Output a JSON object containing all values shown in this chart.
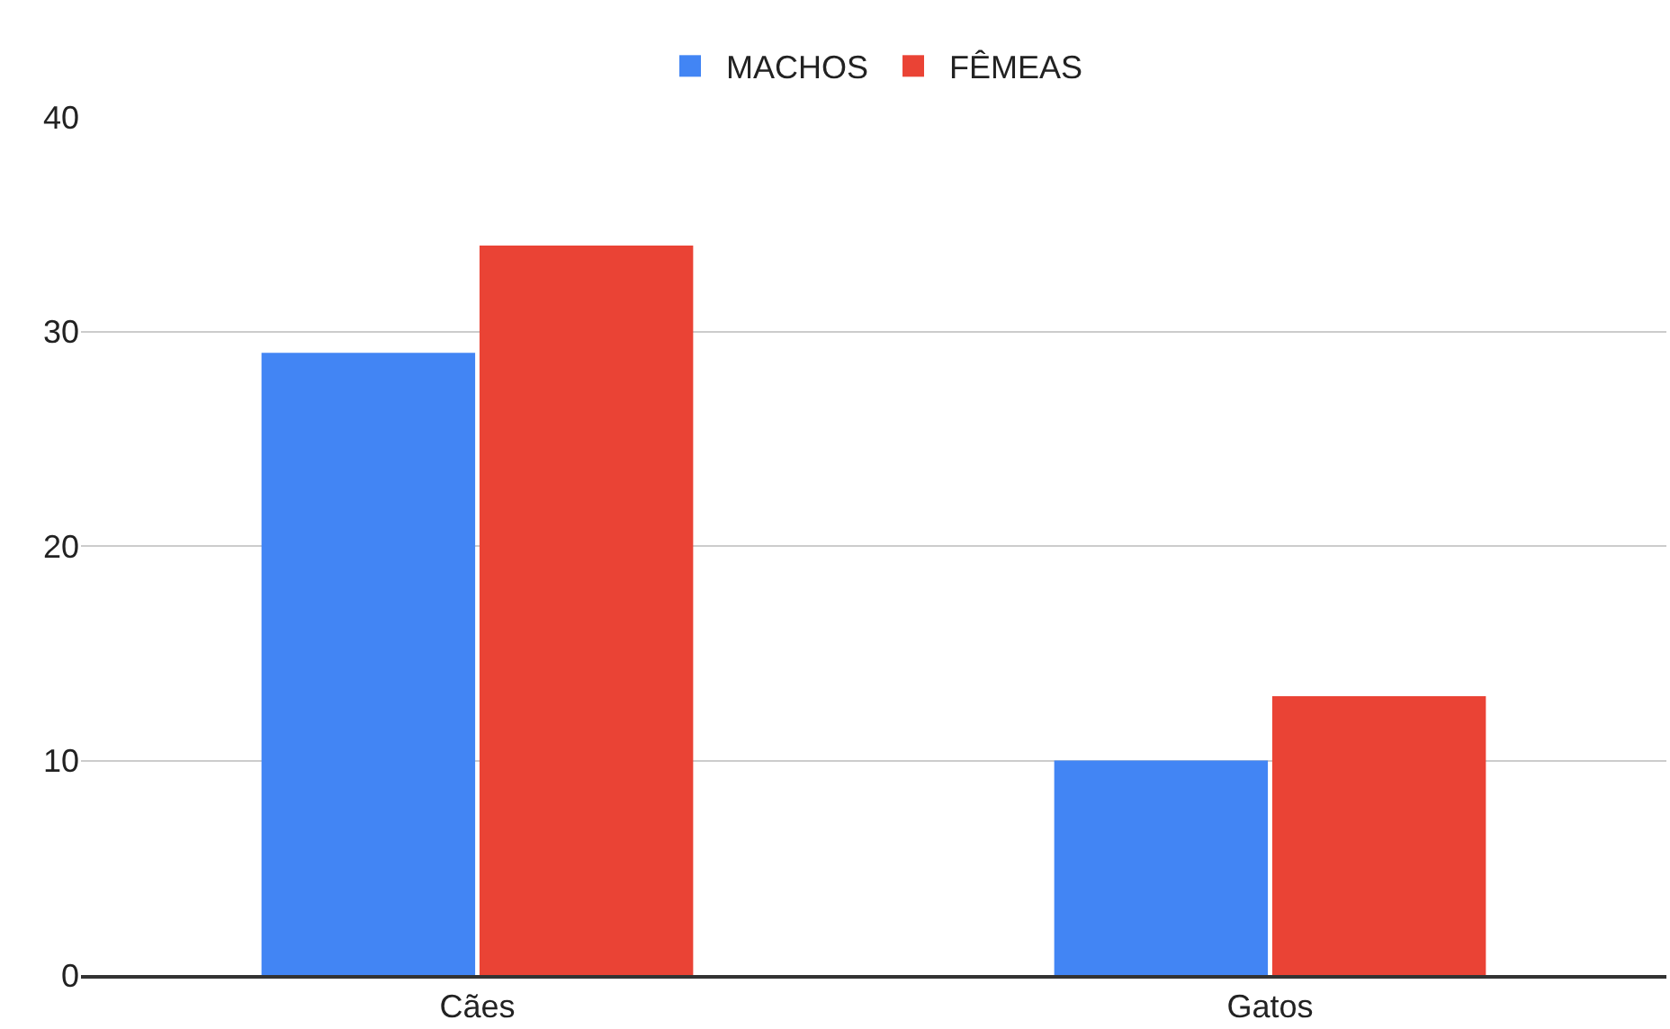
{
  "chart_data": {
    "type": "bar",
    "categories": [
      "Cães",
      "Gatos"
    ],
    "series": [
      {
        "name": "MACHOS",
        "color": "#4285f4",
        "values": [
          29,
          10
        ]
      },
      {
        "name": "FÊMEAS",
        "color": "#ea4335",
        "values": [
          34,
          13
        ]
      }
    ],
    "ylim": [
      0,
      40
    ],
    "yticks": [
      0,
      10,
      20,
      30,
      40
    ],
    "grid": "y",
    "legend": "top"
  }
}
